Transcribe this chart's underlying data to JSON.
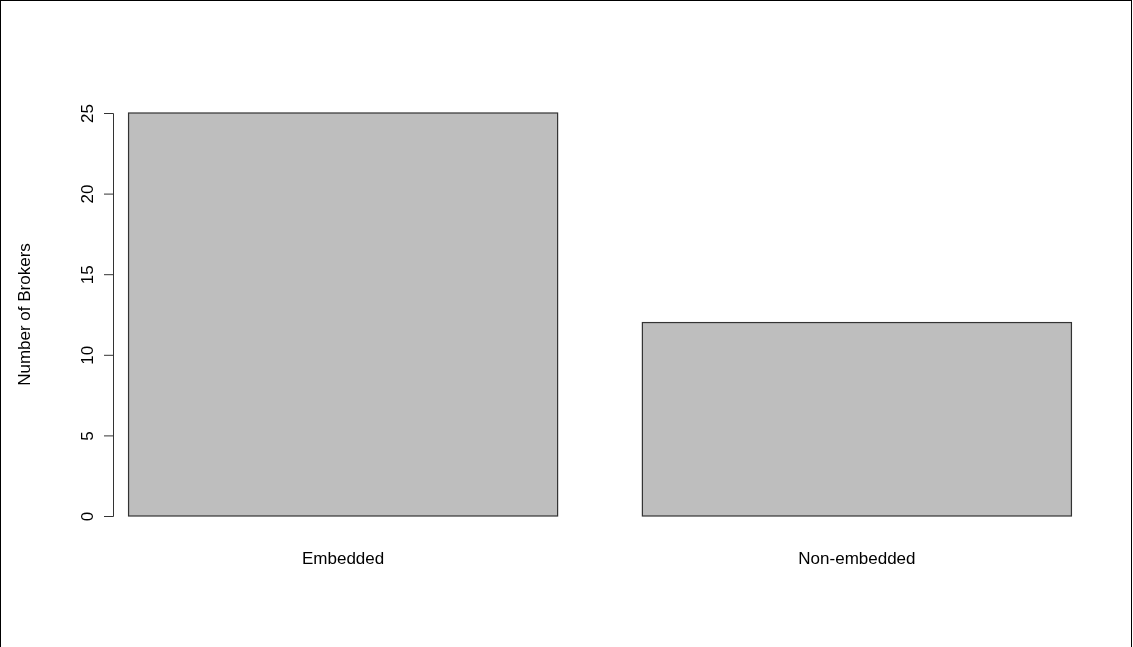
{
  "chart_data": {
    "type": "bar",
    "ylabel": "Number of Brokers",
    "categories": [
      "Embedded",
      "Non-embedded"
    ],
    "values": [
      25,
      12
    ],
    "color": "#bebebe",
    "ylim": [
      0,
      25
    ],
    "yticks": [
      0,
      5,
      10,
      15,
      20,
      25
    ],
    "grid": false
  }
}
